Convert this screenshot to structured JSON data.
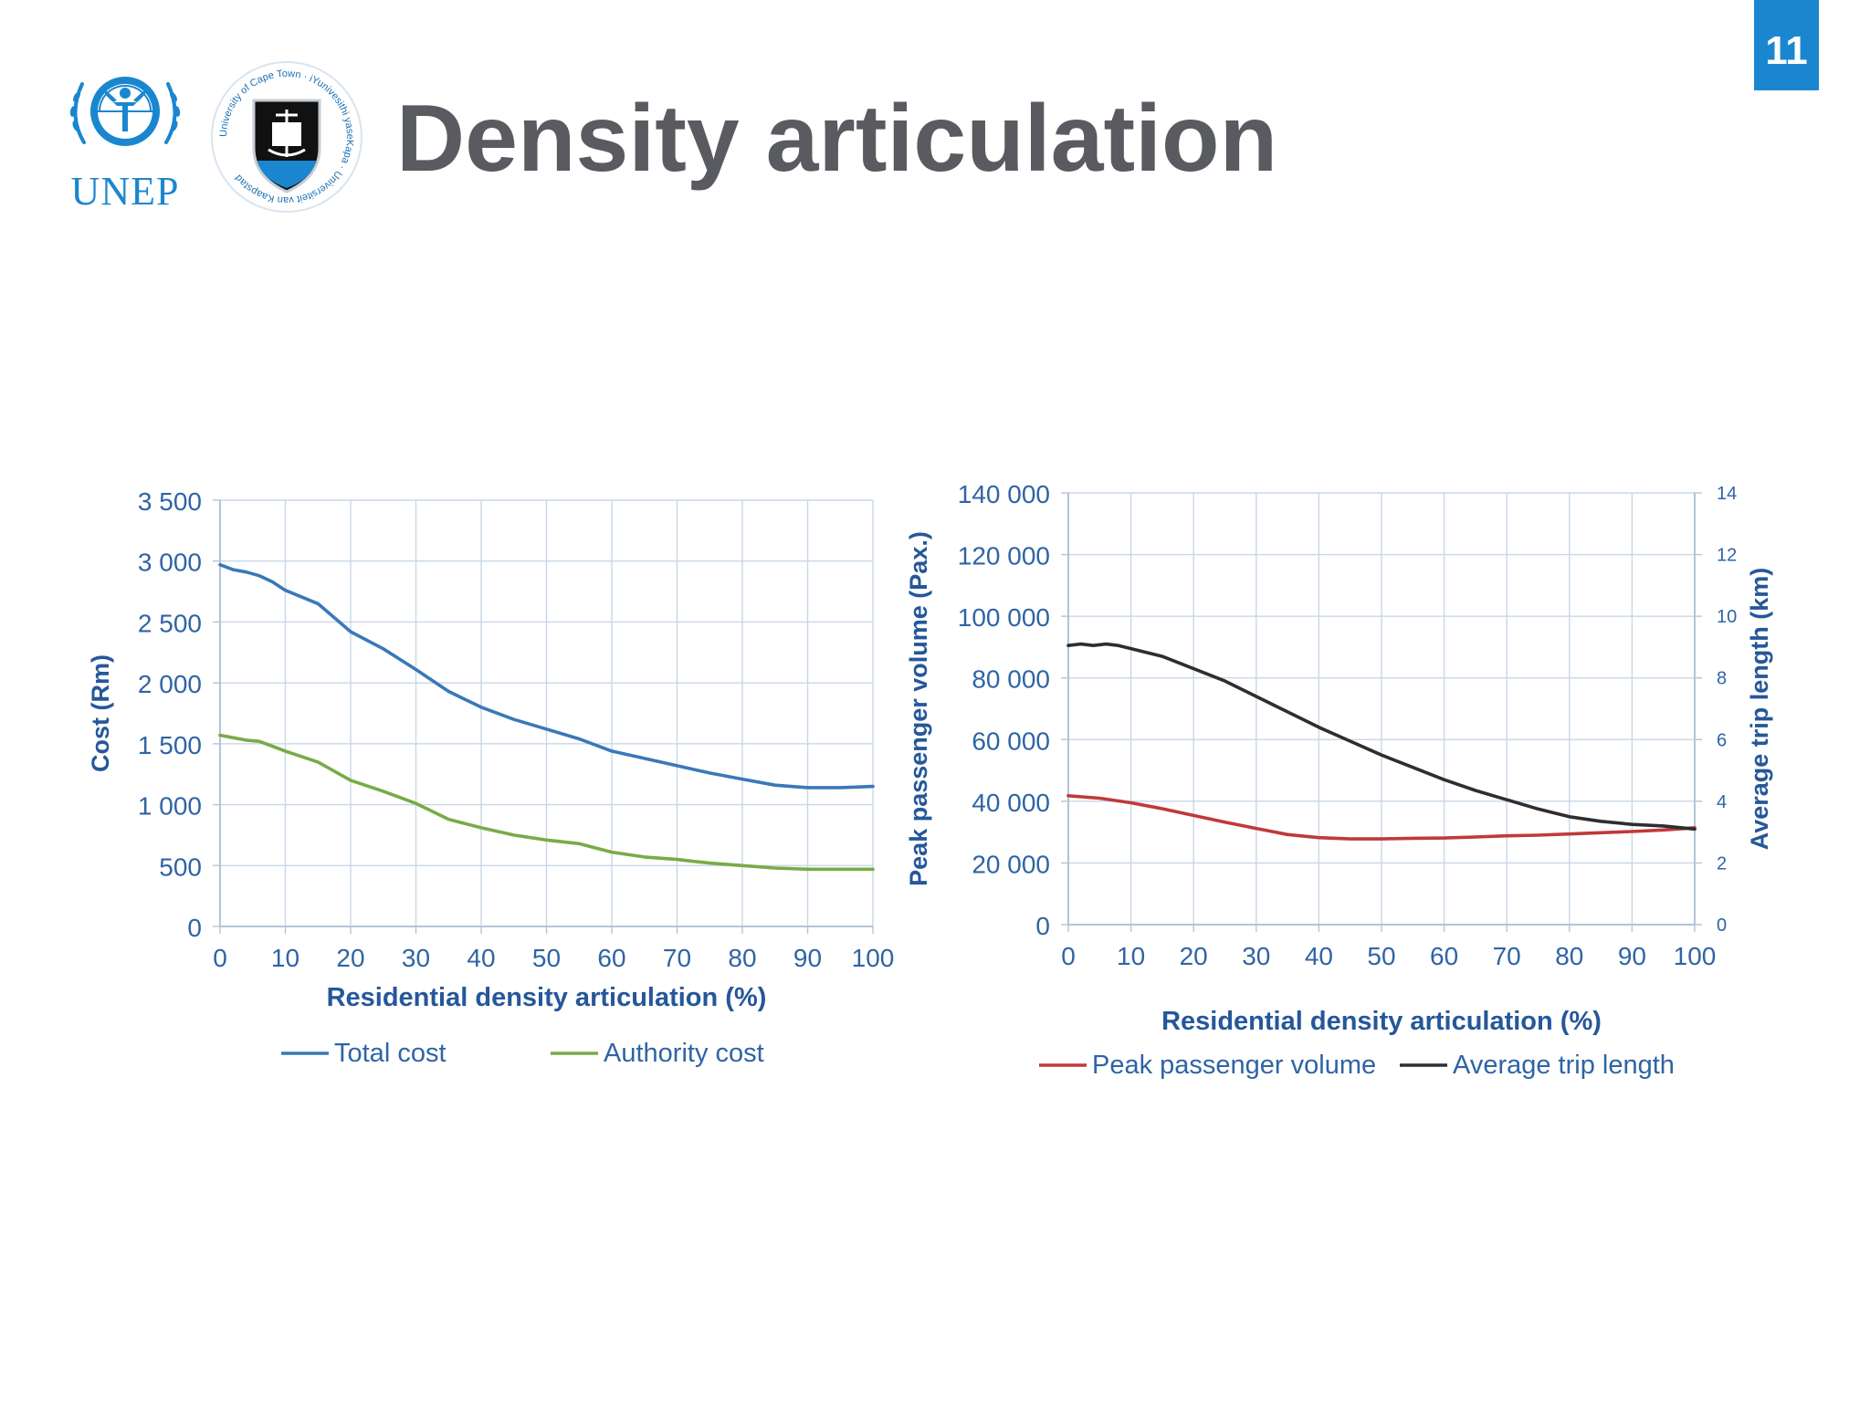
{
  "slide": {
    "number": "11",
    "title": "Density articulation",
    "accent_color": "#1b86d0",
    "logos": [
      {
        "name": "UNEP",
        "text": "UNEP",
        "icon": "unep-emblem-icon"
      },
      {
        "name": "University of Cape Town",
        "text": "University of Cape Town · iYunivesithi yaseKapa · Universiteit van Kaapstad",
        "icon": "uct-crest-icon"
      }
    ]
  },
  "chart_data": [
    {
      "type": "line",
      "xlabel": "Residential density articulation (%)",
      "ylabel": "Cost (Rm)",
      "xlim": [
        0,
        100
      ],
      "ylim": [
        0,
        3500
      ],
      "x_ticks": [
        "0",
        "10",
        "20",
        "30",
        "40",
        "50",
        "60",
        "70",
        "80",
        "90",
        "100"
      ],
      "y_ticks": [
        "0",
        "500",
        "1 000",
        "1 500",
        "2 000",
        "2 500",
        "3 000",
        "3 500"
      ],
      "grid": true,
      "legend": "bottom",
      "series": [
        {
          "name": "Total cost",
          "color": "#3a78b8",
          "x": [
            0,
            2,
            4,
            6,
            8,
            10,
            15,
            20,
            25,
            30,
            35,
            40,
            45,
            50,
            55,
            60,
            65,
            70,
            75,
            80,
            85,
            90,
            95,
            100
          ],
          "y": [
            2970,
            2930,
            2910,
            2880,
            2830,
            2760,
            2650,
            2420,
            2280,
            2110,
            1930,
            1800,
            1700,
            1620,
            1540,
            1440,
            1380,
            1320,
            1260,
            1210,
            1160,
            1140,
            1140,
            1150
          ]
        },
        {
          "name": "Authority cost",
          "color": "#78ab47",
          "x": [
            0,
            2,
            4,
            6,
            8,
            10,
            15,
            20,
            25,
            30,
            35,
            40,
            45,
            50,
            55,
            60,
            65,
            70,
            75,
            80,
            85,
            90,
            95,
            100
          ],
          "y": [
            1570,
            1550,
            1530,
            1520,
            1480,
            1440,
            1350,
            1200,
            1110,
            1010,
            880,
            810,
            750,
            710,
            680,
            610,
            570,
            550,
            520,
            500,
            480,
            470,
            470,
            470
          ]
        }
      ]
    },
    {
      "type": "line",
      "xlabel": "Residential density articulation (%)",
      "ylabel": "Peak passenger volume (Pax.)",
      "y2label": "Average trip length (km)",
      "xlim": [
        0,
        100
      ],
      "ylim": [
        0,
        140000
      ],
      "y2lim": [
        0,
        14
      ],
      "x_ticks": [
        "0",
        "10",
        "20",
        "30",
        "40",
        "50",
        "60",
        "70",
        "80",
        "90",
        "100"
      ],
      "y_ticks": [
        "0",
        "20 000",
        "40 000",
        "60 000",
        "80 000",
        "100 000",
        "120 000",
        "140 000"
      ],
      "y2_ticks": [
        "0",
        "2",
        "4",
        "6",
        "8",
        "10",
        "12",
        "14"
      ],
      "grid": true,
      "legend": "bottom",
      "series": [
        {
          "name": "Peak passenger volume",
          "color": "#c0393b",
          "axis": "left",
          "x": [
            0,
            5,
            10,
            15,
            20,
            25,
            30,
            35,
            40,
            45,
            50,
            55,
            60,
            65,
            70,
            75,
            80,
            85,
            90,
            95,
            100
          ],
          "y": [
            41800,
            41000,
            39500,
            37600,
            35400,
            33200,
            31200,
            29200,
            28200,
            27800,
            27800,
            28000,
            28100,
            28400,
            28800,
            29000,
            29400,
            29800,
            30200,
            30700,
            31400
          ]
        },
        {
          "name": "Average trip length",
          "color": "#2e2e2e",
          "axis": "right",
          "x": [
            0,
            2,
            4,
            6,
            8,
            10,
            15,
            20,
            25,
            30,
            35,
            40,
            45,
            50,
            55,
            60,
            65,
            70,
            75,
            80,
            85,
            90,
            95,
            100
          ],
          "y": [
            9.05,
            9.1,
            9.05,
            9.1,
            9.05,
            8.95,
            8.7,
            8.3,
            7.9,
            7.4,
            6.9,
            6.4,
            5.95,
            5.5,
            5.1,
            4.7,
            4.35,
            4.05,
            3.75,
            3.5,
            3.35,
            3.25,
            3.2,
            3.1
          ]
        }
      ]
    }
  ]
}
